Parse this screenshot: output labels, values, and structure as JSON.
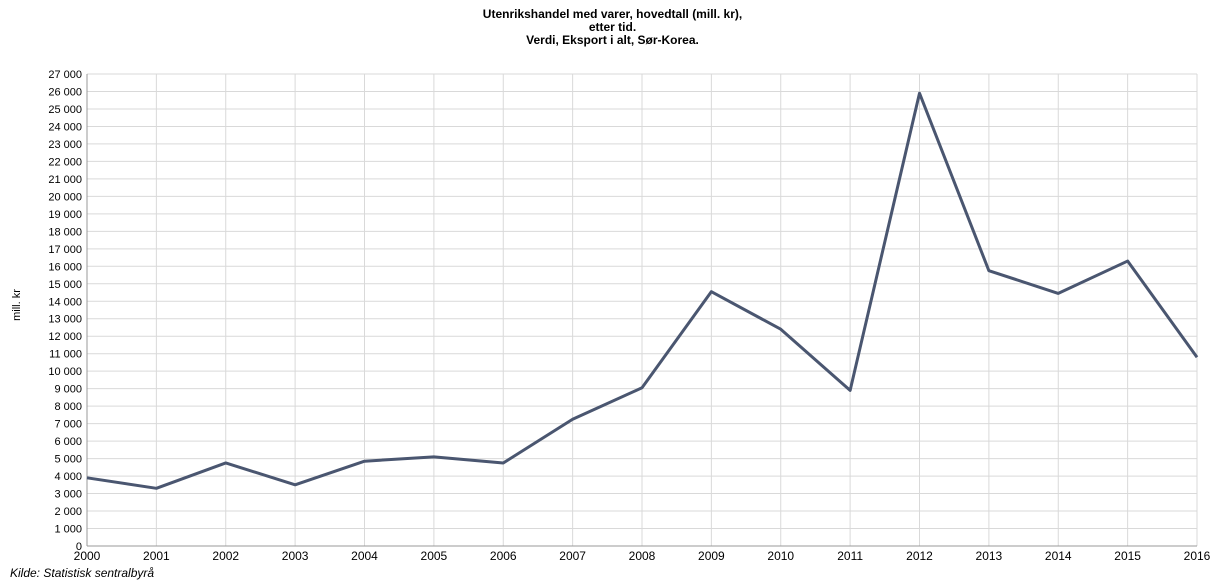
{
  "chart_data": {
    "type": "line",
    "title_lines": [
      "Utenrikshandel med varer, hovedtall (mill. kr),",
      "etter tid.",
      "Verdi, Eksport i alt, Sør-Korea."
    ],
    "ylabel": "mill. kr",
    "xlabel": "",
    "x": [
      "2000",
      "2001",
      "2002",
      "2003",
      "2004",
      "2005",
      "2006",
      "2007",
      "2008",
      "2009",
      "2010",
      "2011",
      "2012",
      "2013",
      "2014",
      "2015",
      "2016"
    ],
    "series": [
      {
        "values": [
          3900,
          3300,
          4750,
          3500,
          4850,
          5100,
          4750,
          7250,
          9050,
          14550,
          12400,
          8900,
          25900,
          15750,
          14450,
          16300,
          10800
        ],
        "color": "#4a5670"
      }
    ],
    "y_ticks": [
      0,
      1000,
      2000,
      3000,
      4000,
      5000,
      6000,
      7000,
      8000,
      9000,
      10000,
      11000,
      12000,
      13000,
      14000,
      15000,
      16000,
      17000,
      18000,
      19000,
      20000,
      21000,
      22000,
      23000,
      24000,
      25000,
      26000,
      27000
    ],
    "y_tick_labels": [
      "0",
      "1 000",
      "2 000",
      "3 000",
      "4 000",
      "5 000",
      "6 000",
      "7 000",
      "8 000",
      "9 000",
      "10 000",
      "11 000",
      "12 000",
      "13 000",
      "14 000",
      "15 000",
      "16 000",
      "17 000",
      "18 000",
      "19 000",
      "20 000",
      "21 000",
      "22 000",
      "23 000",
      "24 000",
      "25 000",
      "26 000",
      "27 000"
    ],
    "ylim": [
      0,
      27000
    ],
    "grid": true,
    "legend": "none",
    "source": "Kilde: Statistisk sentralbyrå"
  }
}
